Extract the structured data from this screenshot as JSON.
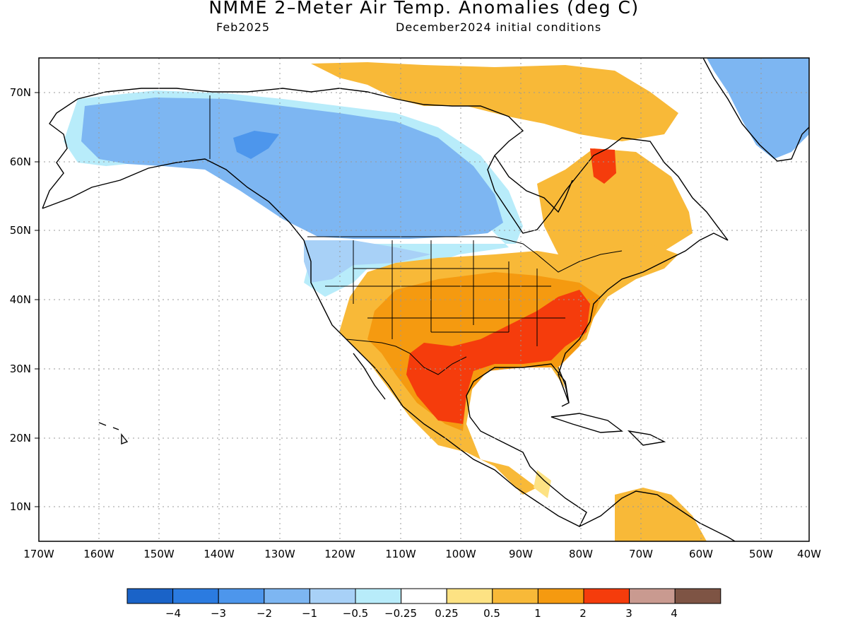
{
  "title": "NMME 2–Meter Air Temp. Anomalies (deg C)",
  "subtitle_left": "Feb2025",
  "subtitle_right": "December2024 initial conditions",
  "axes": {
    "lat_labels": [
      "70N",
      "60N",
      "50N",
      "40N",
      "30N",
      "20N",
      "10N"
    ],
    "lon_labels": [
      "170W",
      "160W",
      "150W",
      "140W",
      "130W",
      "120W",
      "110W",
      "100W",
      "90W",
      "80W",
      "70W",
      "60W",
      "50W",
      "40W"
    ]
  },
  "colorbar": {
    "colors": [
      "#1a63c8",
      "#2b7be0",
      "#4d96ec",
      "#7db6f2",
      "#a8d1f7",
      "#b8ecfa",
      "#ffffff",
      "#fde283",
      "#f8b938",
      "#f59a10",
      "#f53c0c",
      "#c99a90",
      "#7e5444"
    ],
    "labels": [
      "−4",
      "−3",
      "−2",
      "−1",
      "−0.5",
      "−0.25",
      "0.25",
      "0.5",
      "1",
      "2",
      "3",
      "4"
    ]
  },
  "colors": {
    "cold_strong": "#4d96ec",
    "cold": "#7db6f2",
    "cool": "#a8d1f7",
    "cool_light": "#b8ecfa",
    "warm_light": "#fde283",
    "warm": "#f8b938",
    "warmer": "#f59a10",
    "hot": "#f53c0c"
  }
}
